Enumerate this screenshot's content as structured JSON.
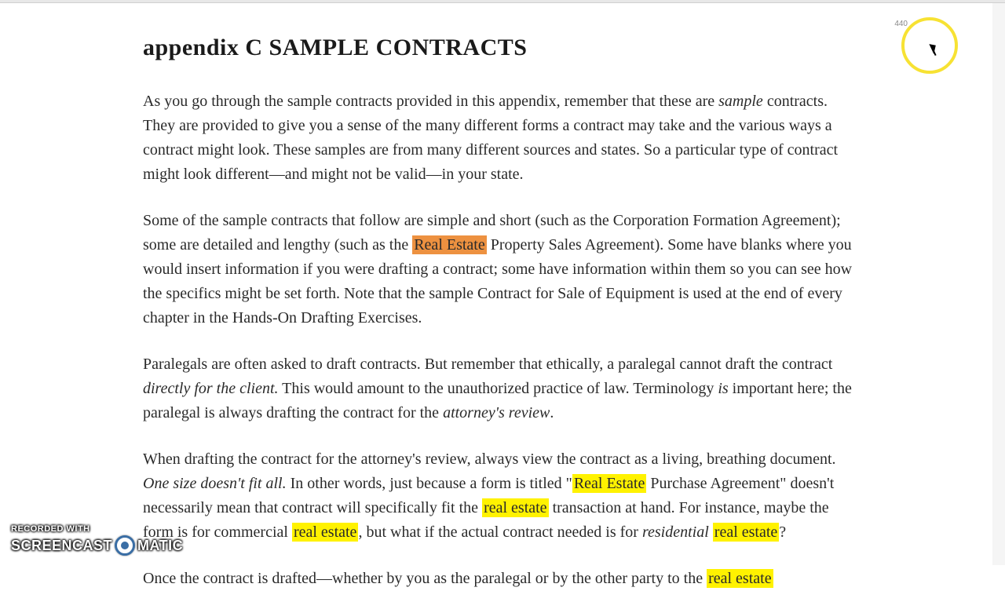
{
  "page_number": "440",
  "title": "appendix C SAMPLE CONTRACTS",
  "paragraphs": {
    "p1_pre": "As you go through the sample contracts provided in this appendix, remember that these are ",
    "p1_italic": "sample",
    "p1_post": " contracts. They are provided to give you a sense of the many different forms a contract may take and the various ways a contract might look. These samples are from many different sources and states. So a particular type of contract might look different—and might not be valid—in your state.",
    "p2_pre": "Some of the sample contracts that follow are simple and short (such as the Corporation Formation Agreement); some are detailed and lengthy (such as the ",
    "p2_hl": "Real Estate",
    "p2_post": " Property Sales Agreement). Some have blanks where you would insert information if you were drafting a contract; some have information within them so you can see how the specifics might be set forth. Note that the sample Contract for Sale of Equipment is used at the end of every chapter in the Hands-On Drafting Exercises.",
    "p3_a": "Paralegals are often asked to draft contracts. But remember that ethically, a paralegal cannot draft the contract ",
    "p3_italic1": "directly for the client.",
    "p3_b": " This would amount to the unauthorized practice of law. Terminology ",
    "p3_italic2": "is",
    "p3_c": " important here; the paralegal is always drafting the contract for the ",
    "p3_italic3": "attorney's review",
    "p3_d": ".",
    "p4_a": "When drafting the contract for the attorney's review, always view the contract as a living, breathing document. ",
    "p4_italic": "One size doesn't fit all.",
    "p4_b": " In other words, just because a form is titled \"",
    "p4_hl1": "Real Estate",
    "p4_c": " Purchase Agreement\" doesn't necessarily mean that contract will specifically fit the ",
    "p4_hl2": "real estate",
    "p4_d": " transaction at hand. For instance, maybe the form is for commercial ",
    "p4_hl3": "real estate",
    "p4_e": ", but what if the actual contract needed is for ",
    "p4_italic2": "residential ",
    "p4_hl4": "real estate",
    "p4_f": "?",
    "p5_a": "Once the contract is drafted—whether by you as the paralegal or by the other party to the ",
    "p5_hl": "real estate"
  },
  "watermark": {
    "recorded": "RECORDED WITH",
    "brand1": "SCREENCAST",
    "brand2": "MATIC"
  },
  "colors": {
    "highlight_orange": "#ed9140",
    "highlight_yellow": "#fff200",
    "cursor_ring": "#f7e233",
    "watermark_blue": "#3a6ea5"
  }
}
